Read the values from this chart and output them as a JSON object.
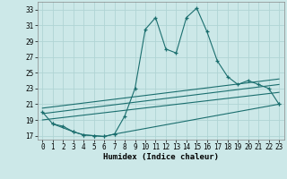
{
  "xlabel": "Humidex (Indice chaleur)",
  "xlim": [
    -0.5,
    23.5
  ],
  "ylim": [
    16.5,
    34.0
  ],
  "xticks": [
    0,
    1,
    2,
    3,
    4,
    5,
    6,
    7,
    8,
    9,
    10,
    11,
    12,
    13,
    14,
    15,
    16,
    17,
    18,
    19,
    20,
    21,
    22,
    23
  ],
  "yticks": [
    17,
    19,
    21,
    23,
    25,
    27,
    29,
    31,
    33
  ],
  "bg_color": "#cce8e8",
  "line_color": "#1a6e6e",
  "grid_color": "#b0d4d4",
  "line1_x": [
    0,
    1,
    2,
    3,
    4,
    5,
    6,
    7,
    8,
    9,
    10,
    11,
    12,
    13,
    14,
    15,
    16,
    17,
    18,
    19,
    20,
    21,
    22,
    23
  ],
  "line1_y": [
    20.0,
    18.5,
    18.2,
    17.5,
    17.1,
    17.0,
    16.9,
    17.2,
    19.5,
    23.0,
    30.5,
    32.0,
    28.0,
    27.5,
    32.0,
    33.2,
    30.2,
    26.5,
    24.5,
    23.5,
    24.0,
    23.5,
    23.0,
    21.0
  ],
  "line2_x": [
    1,
    3,
    4,
    5,
    6,
    7,
    23
  ],
  "line2_y": [
    18.5,
    17.5,
    17.1,
    17.0,
    16.9,
    17.2,
    21.0
  ],
  "line3_x": [
    0,
    23
  ],
  "line3_y": [
    19.0,
    22.5
  ],
  "line4_x": [
    0,
    23
  ],
  "line4_y": [
    19.8,
    23.5
  ],
  "line5_x": [
    0,
    23
  ],
  "line5_y": [
    20.5,
    24.2
  ]
}
